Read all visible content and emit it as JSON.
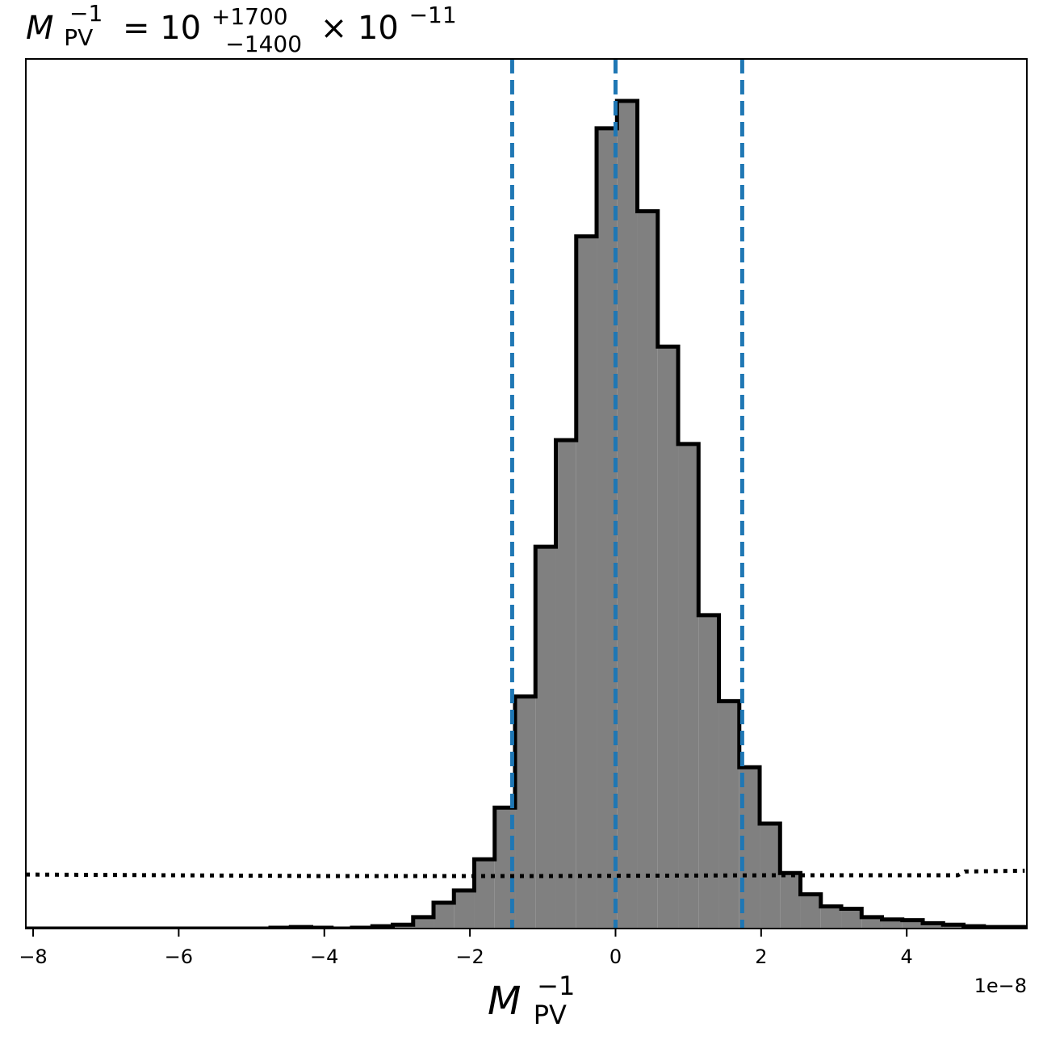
{
  "chart_data": {
    "type": "histogram",
    "title": {
      "base": "M",
      "sub": "PV",
      "sup": "−1",
      "rhs_prefix": "= 10",
      "upper": "+1700",
      "lower": "−1400",
      "times": "× 10",
      "exp": "−11"
    },
    "xlabel": {
      "base": "M",
      "sub": "PV",
      "sup": "−1"
    },
    "x_offset_label": "1e−8",
    "xlim": [
      -8.1,
      5.65
    ],
    "ylim": [
      0,
      1.088
    ],
    "x_ticks": [
      -8,
      -6,
      -4,
      -2,
      0,
      2,
      4
    ],
    "x_tick_labels": [
      "−8",
      "−6",
      "−4",
      "−2",
      "0",
      "2",
      "4"
    ],
    "y_ticks_visible": false,
    "bin_edges": [
      -8.1,
      -7.82,
      -7.54,
      -7.26,
      -6.98,
      -6.7,
      -6.42,
      -6.14,
      -5.86,
      -5.58,
      -5.3,
      -5.02,
      -4.74,
      -4.46,
      -4.18,
      -3.9,
      -3.62,
      -3.34,
      -3.06,
      -2.78,
      -2.5,
      -2.22,
      -1.94,
      -1.66,
      -1.38,
      -1.1,
      -0.82,
      -0.54,
      -0.26,
      0.02,
      0.3,
      0.58,
      0.86,
      1.14,
      1.42,
      1.7,
      1.98,
      2.26,
      2.54,
      2.82,
      3.1,
      3.38,
      3.66,
      3.94,
      4.22,
      4.5,
      4.78,
      5.06,
      5.34,
      5.62
    ],
    "counts": [
      0,
      0,
      0,
      0,
      0,
      0,
      0,
      0,
      0,
      0,
      0,
      0,
      0.001,
      0.002,
      0.001,
      0,
      0.001,
      0.003,
      0.005,
      0.015,
      0.034,
      0.05,
      0.091,
      0.159,
      0.305,
      0.502,
      0.642,
      0.91,
      1.052,
      1.088,
      0.943,
      0.765,
      0.637,
      0.412,
      0.299,
      0.212,
      0.138,
      0.073,
      0.045,
      0.029,
      0.026,
      0.015,
      0.012,
      0.011,
      0.007,
      0.005,
      0.003,
      0.002,
      0.002
    ],
    "fill_color": "#808080",
    "edge_color": "#000000",
    "vlines": [
      {
        "x": -1.42,
        "label": "lower",
        "color": "#1f77b4",
        "style": "dashed"
      },
      {
        "x": 0.0,
        "label": "median",
        "color": "#1f77b4",
        "style": "dashed"
      },
      {
        "x": 1.74,
        "label": "upper",
        "color": "#1f77b4",
        "style": "dashed"
      }
    ],
    "prior_curve": {
      "style": "dotted",
      "color": "#000000",
      "x": [
        -8.1,
        -4.0,
        -1.0,
        2.0,
        4.7,
        4.8,
        5.62
      ],
      "y": [
        0.071,
        0.069,
        0.069,
        0.07,
        0.07,
        0.075,
        0.076
      ]
    }
  }
}
